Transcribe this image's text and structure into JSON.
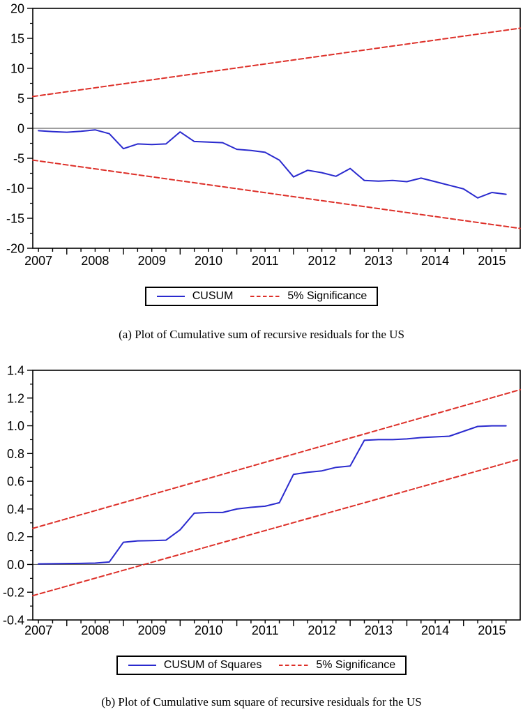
{
  "page": {
    "background": "#ffffff"
  },
  "colors": {
    "cusum_blue": "#2a2ace",
    "significance_red": "#dd2f28",
    "zero_line_gray": "#666666",
    "frame_black": "#000000",
    "text_black": "#000000"
  },
  "chart_data": [
    {
      "type": "line",
      "title": "",
      "xlabel": "",
      "ylabel": "",
      "caption": "(a) Plot of Cumulative sum of recursive residuals for the US",
      "grid": false,
      "zero_line": true,
      "legend_position": "bottom-center",
      "xlim": [
        2006.9,
        2015.5
      ],
      "ylim": [
        -20,
        20
      ],
      "ytick_values": [
        20,
        15,
        10,
        5,
        0,
        -5,
        -10,
        -15,
        -20
      ],
      "ytick_labels": [
        "20",
        "15",
        "10",
        "5",
        "0",
        "-5",
        "-10",
        "-15",
        "-20"
      ],
      "xtick_values": [
        2007,
        2008,
        2009,
        2010,
        2011,
        2012,
        2013,
        2014,
        2015
      ],
      "xtick_labels": [
        "2007",
        "2008",
        "2009",
        "2010",
        "2011",
        "2012",
        "2013",
        "2014",
        "2015"
      ],
      "legend": {
        "items": [
          {
            "label": "CUSUM",
            "line_style": "solid",
            "color": "#2a2ace"
          },
          {
            "label": "5% Significance",
            "line_style": "dashed",
            "color": "#dd2f28"
          }
        ]
      },
      "series": [
        {
          "name": "CUSUM",
          "color": "#2a2ace",
          "style": "solid",
          "x": [
            2007.0,
            2007.25,
            2007.5,
            2007.75,
            2008.0,
            2008.25,
            2008.5,
            2008.75,
            2009.0,
            2009.25,
            2009.5,
            2009.75,
            2010.0,
            2010.25,
            2010.5,
            2010.75,
            2011.0,
            2011.25,
            2011.5,
            2011.75,
            2012.0,
            2012.25,
            2012.5,
            2012.75,
            2013.0,
            2013.25,
            2013.5,
            2013.75,
            2014.0,
            2014.25,
            2014.5,
            2014.75,
            2015.0,
            2015.25
          ],
          "values": [
            -0.4,
            -0.55,
            -0.65,
            -0.5,
            -0.25,
            -0.9,
            -3.4,
            -2.6,
            -2.7,
            -2.6,
            -0.6,
            -2.2,
            -2.3,
            -2.4,
            -3.5,
            -3.7,
            -4.0,
            -5.3,
            -8.1,
            -7.0,
            -7.4,
            -8.0,
            -6.7,
            -8.7,
            -8.8,
            -8.7,
            -8.9,
            -8.3,
            -8.9,
            -9.5,
            -10.1,
            -11.6,
            -10.7,
            -11.0
          ]
        },
        {
          "name": "5% Significance upper bound",
          "color": "#dd2f28",
          "style": "dashed",
          "x": [
            2006.9,
            2015.5
          ],
          "values": [
            5.3,
            16.7
          ]
        },
        {
          "name": "5% Significance lower bound",
          "color": "#dd2f28",
          "style": "dashed",
          "x": [
            2006.9,
            2015.5
          ],
          "values": [
            -5.3,
            -16.7
          ]
        }
      ]
    },
    {
      "type": "line",
      "title": "",
      "xlabel": "",
      "ylabel": "",
      "caption": "(b) Plot of Cumulative sum square of recursive residuals for the US",
      "grid": false,
      "zero_line": true,
      "legend_position": "bottom-center",
      "xlim": [
        2006.9,
        2015.5
      ],
      "ylim": [
        -0.4,
        1.4
      ],
      "ytick_values": [
        1.4,
        1.2,
        1.0,
        0.8,
        0.6,
        0.4,
        0.2,
        0.0,
        -0.2,
        -0.4
      ],
      "ytick_labels": [
        "1.4",
        "1.2",
        "1.0",
        "0.8",
        "0.6",
        "0.4",
        "0.2",
        "0.0",
        "-0.2",
        "-0.4"
      ],
      "xtick_values": [
        2007,
        2008,
        2009,
        2010,
        2011,
        2012,
        2013,
        2014,
        2015
      ],
      "xtick_labels": [
        "2007",
        "2008",
        "2009",
        "2010",
        "2011",
        "2012",
        "2013",
        "2014",
        "2015"
      ],
      "legend": {
        "items": [
          {
            "label": "CUSUM of Squares",
            "line_style": "solid",
            "color": "#2a2ace"
          },
          {
            "label": "5% Significance",
            "line_style": "dashed",
            "color": "#dd2f28"
          }
        ]
      },
      "series": [
        {
          "name": "CUSUM of Squares",
          "color": "#2a2ace",
          "style": "solid",
          "x": [
            2007.0,
            2007.25,
            2007.5,
            2007.75,
            2008.0,
            2008.25,
            2008.5,
            2008.75,
            2009.0,
            2009.25,
            2009.5,
            2009.75,
            2010.0,
            2010.25,
            2010.5,
            2010.75,
            2011.0,
            2011.25,
            2011.5,
            2011.75,
            2012.0,
            2012.25,
            2012.5,
            2012.75,
            2013.0,
            2013.25,
            2013.5,
            2013.75,
            2014.0,
            2014.25,
            2014.5,
            2014.75,
            2015.0,
            2015.25
          ],
          "values": [
            0.004,
            0.005,
            0.007,
            0.008,
            0.01,
            0.018,
            0.16,
            0.17,
            0.172,
            0.175,
            0.25,
            0.37,
            0.375,
            0.375,
            0.4,
            0.412,
            0.42,
            0.445,
            0.65,
            0.665,
            0.675,
            0.7,
            0.71,
            0.895,
            0.9,
            0.9,
            0.905,
            0.915,
            0.92,
            0.925,
            0.96,
            0.995,
            1.0,
            1.0
          ]
        },
        {
          "name": "5% Significance upper bound",
          "color": "#dd2f28",
          "style": "dashed",
          "x": [
            2006.9,
            2015.5
          ],
          "values": [
            0.26,
            1.26
          ]
        },
        {
          "name": "5% Significance lower bound",
          "color": "#dd2f28",
          "style": "dashed",
          "x": [
            2006.9,
            2015.5
          ],
          "values": [
            -0.225,
            0.76
          ]
        }
      ]
    }
  ]
}
